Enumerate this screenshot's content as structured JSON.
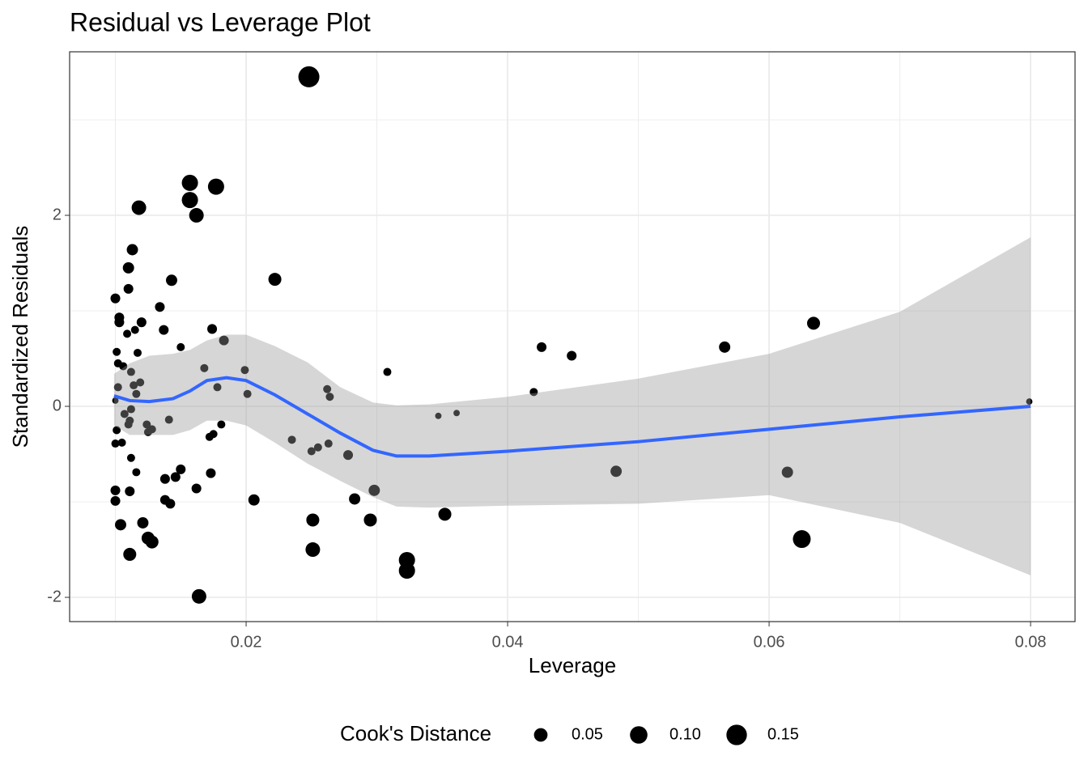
{
  "chart_data": {
    "type": "scatter",
    "title": "Residual vs Leverage Plot",
    "x_label": "Leverage",
    "y_label": "Standardized Residuals",
    "xlim": [
      0.0065,
      0.0834
    ],
    "ylim": [
      -2.254,
      3.712
    ],
    "xticks": [
      0.02,
      0.04,
      0.06,
      0.08
    ],
    "yticks": [
      -2,
      0,
      2
    ],
    "minor_xticks": [
      0.01,
      0.03,
      0.05,
      0.07
    ],
    "minor_yticks": [
      -1,
      1,
      3
    ],
    "grid": true,
    "legend_position": "bottom",
    "color": "#000000",
    "x": [
      0.0248,
      0.0157,
      0.0177,
      0.0157,
      0.0118,
      0.0162,
      0.0113,
      0.011,
      0.0143,
      0.0222,
      0.011,
      0.01,
      0.0134,
      0.0103,
      0.0103,
      0.012,
      0.0137,
      0.0174,
      0.0634,
      0.0115,
      0.0109,
      0.0183,
      0.0426,
      0.0566,
      0.015,
      0.0449,
      0.0101,
      0.0117,
      0.0102,
      0.0106,
      0.0168,
      0.0199,
      0.0112,
      0.0308,
      0.0119,
      0.0114,
      0.0102,
      0.0178,
      0.0262,
      0.042,
      0.0116,
      0.0201,
      0.0264,
      0.01,
      0.0799,
      0.0112,
      0.0107,
      0.0361,
      0.0347,
      0.0111,
      0.0141,
      0.0124,
      0.0181,
      0.011,
      0.0128,
      0.0101,
      0.0125,
      0.0175,
      0.0172,
      0.0235,
      0.0105,
      0.01,
      0.0263,
      0.0255,
      0.025,
      0.0278,
      0.0112,
      0.0483,
      0.0614,
      0.0116,
      0.015,
      0.0173,
      0.0146,
      0.0138,
      0.0162,
      0.01,
      0.0111,
      0.0298,
      0.0283,
      0.0206,
      0.01,
      0.0138,
      0.0142,
      0.0352,
      0.0251,
      0.0295,
      0.0104,
      0.0121,
      0.0125,
      0.0128,
      0.0625,
      0.0251,
      0.0111,
      0.0323,
      0.0323,
      0.0164
    ],
    "values": [
      3.45,
      2.34,
      2.3,
      2.16,
      2.08,
      2.0,
      1.64,
      1.45,
      1.32,
      1.33,
      1.23,
      1.13,
      1.04,
      0.93,
      0.88,
      0.88,
      0.8,
      0.81,
      0.87,
      0.8,
      0.76,
      0.69,
      0.62,
      0.62,
      0.62,
      0.53,
      0.57,
      0.56,
      0.45,
      0.42,
      0.4,
      0.38,
      0.36,
      0.36,
      0.25,
      0.22,
      0.2,
      0.2,
      0.18,
      0.15,
      0.13,
      0.13,
      0.1,
      0.06,
      0.05,
      -0.03,
      -0.08,
      -0.07,
      -0.1,
      -0.15,
      -0.14,
      -0.19,
      -0.19,
      -0.19,
      -0.24,
      -0.25,
      -0.27,
      -0.29,
      -0.32,
      -0.35,
      -0.38,
      -0.39,
      -0.39,
      -0.43,
      -0.47,
      -0.51,
      -0.54,
      -0.68,
      -0.69,
      -0.69,
      -0.66,
      -0.7,
      -0.74,
      -0.76,
      -0.86,
      -0.88,
      -0.89,
      -0.88,
      -0.97,
      -0.98,
      -0.99,
      -0.98,
      -1.02,
      -1.13,
      -1.19,
      -1.19,
      -1.24,
      -1.22,
      -1.38,
      -1.42,
      -1.39,
      -1.5,
      -1.55,
      -1.61,
      -1.72,
      -1.99
    ],
    "sizes": [
      0.16,
      0.082,
      0.082,
      0.082,
      0.061,
      0.061,
      0.029,
      0.029,
      0.029,
      0.044,
      0.018,
      0.018,
      0.018,
      0.018,
      0.018,
      0.018,
      0.018,
      0.018,
      0.044,
      0.009,
      0.009,
      0.018,
      0.018,
      0.029,
      0.009,
      0.018,
      0.009,
      0.009,
      0.009,
      0.009,
      0.009,
      0.009,
      0.009,
      0.009,
      0.009,
      0.009,
      0.009,
      0.009,
      0.009,
      0.009,
      0.009,
      0.009,
      0.009,
      0.003,
      0.003,
      0.009,
      0.009,
      0.003,
      0.003,
      0.009,
      0.009,
      0.009,
      0.009,
      0.009,
      0.009,
      0.009,
      0.009,
      0.009,
      0.009,
      0.009,
      0.009,
      0.009,
      0.009,
      0.009,
      0.009,
      0.018,
      0.009,
      0.029,
      0.029,
      0.009,
      0.018,
      0.018,
      0.018,
      0.018,
      0.018,
      0.018,
      0.018,
      0.029,
      0.029,
      0.029,
      0.018,
      0.018,
      0.018,
      0.044,
      0.044,
      0.044,
      0.029,
      0.029,
      0.044,
      0.044,
      0.105,
      0.061,
      0.044,
      0.082,
      0.082,
      0.061
    ],
    "smooth": {
      "color": "#3366ff",
      "band_color": "#999999",
      "x": [
        0.0099,
        0.0111,
        0.0126,
        0.0144,
        0.0157,
        0.017,
        0.0185,
        0.02,
        0.0222,
        0.0247,
        0.0272,
        0.0297,
        0.0315,
        0.034,
        0.04,
        0.05,
        0.06,
        0.07,
        0.08
      ],
      "y": [
        0.11,
        0.06,
        0.05,
        0.08,
        0.16,
        0.27,
        0.3,
        0.27,
        0.12,
        -0.08,
        -0.28,
        -0.46,
        -0.52,
        -0.52,
        -0.47,
        -0.37,
        -0.24,
        -0.11,
        0.0
      ],
      "ymax": [
        0.34,
        0.45,
        0.53,
        0.55,
        0.59,
        0.69,
        0.75,
        0.75,
        0.63,
        0.46,
        0.2,
        0.04,
        0.01,
        0.02,
        0.1,
        0.29,
        0.55,
        0.99,
        1.77
      ],
      "ymin": [
        -0.2,
        -0.3,
        -0.3,
        -0.3,
        -0.25,
        -0.15,
        -0.15,
        -0.2,
        -0.38,
        -0.6,
        -0.78,
        -0.95,
        -1.05,
        -1.06,
        -1.04,
        -1.02,
        -0.93,
        -1.22,
        -1.77
      ]
    },
    "size_legend": {
      "title": "Cook's Distance",
      "values": [
        0.05,
        {
          "value": 0.1,
          "label": "0.10"
        },
        0.15
      ]
    }
  }
}
